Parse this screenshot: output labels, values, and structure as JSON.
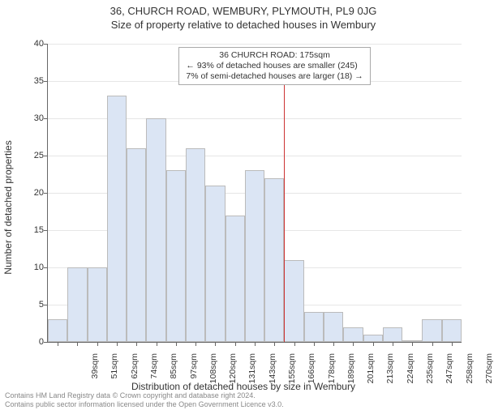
{
  "chart": {
    "type": "histogram",
    "title_main": "36, CHURCH ROAD, WEMBURY, PLYMOUTH, PL9 0JG",
    "title_sub": "Size of property relative to detached houses in Wembury",
    "y_axis_label": "Number of detached properties",
    "x_axis_label": "Distribution of detached houses by size in Wembury",
    "ylim": [
      0,
      40
    ],
    "ytick_step": 5,
    "x_categories": [
      "39sqm",
      "51sqm",
      "62sqm",
      "74sqm",
      "85sqm",
      "97sqm",
      "108sqm",
      "120sqm",
      "131sqm",
      "143sqm",
      "155sqm",
      "166sqm",
      "178sqm",
      "189sqm",
      "201sqm",
      "213sqm",
      "224sqm",
      "235sqm",
      "247sqm",
      "258sqm",
      "270sqm"
    ],
    "values": [
      3,
      10,
      10,
      33,
      26,
      30,
      23,
      26,
      21,
      17,
      23,
      22,
      11,
      4,
      4,
      2,
      1,
      2,
      0,
      3,
      3
    ],
    "bar_color": "#dbe5f4",
    "bar_border_color": "#bbbbbb",
    "grid_color": "#e6e6e6",
    "background_color": "#ffffff",
    "marker": {
      "position_category_index": 12,
      "fraction_into_bin": 0.0,
      "color": "#cc3333",
      "box_lines": [
        "36 CHURCH ROAD: 175sqm",
        "← 93% of detached houses are smaller (245)",
        "7% of semi-detached houses are larger (18) →"
      ]
    },
    "title_fontsize": 13,
    "axis_label_fontsize": 12,
    "tick_fontsize": 11
  },
  "footnote": {
    "line1": "Contains HM Land Registry data © Crown copyright and database right 2024.",
    "line2": "Contains public sector information licensed under the Open Government Licence v3.0."
  }
}
